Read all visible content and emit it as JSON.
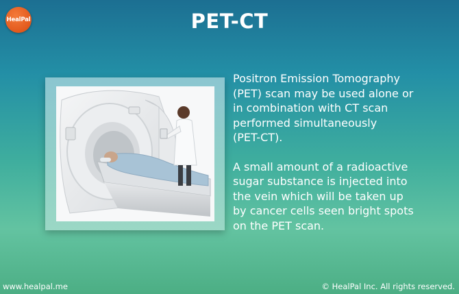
{
  "logo": {
    "text": "HealPal"
  },
  "title": "PET-CT",
  "paragraphs": [
    "Positron Emission Tomography\n(PET) scan may be used alone or\nin combination with CT scan\nperformed simultaneously\n(PET-CT).",
    "A small amount of  a radioactive\nsugar substance is injected into\nthe vein which will be taken up\nby cancer cells seen bright spots\non the PET scan."
  ],
  "footer": {
    "website": "www.healpal.me",
    "copyright": "© HealPal Inc. All rights reserved."
  },
  "colors": {
    "logo": "#e2591c",
    "text": "#ffffff",
    "background_top": "#1c6f92",
    "background_bottom": "#4cae84"
  },
  "image": {
    "subject": "pet-ct-scanner-with-patient-and-nurse"
  }
}
